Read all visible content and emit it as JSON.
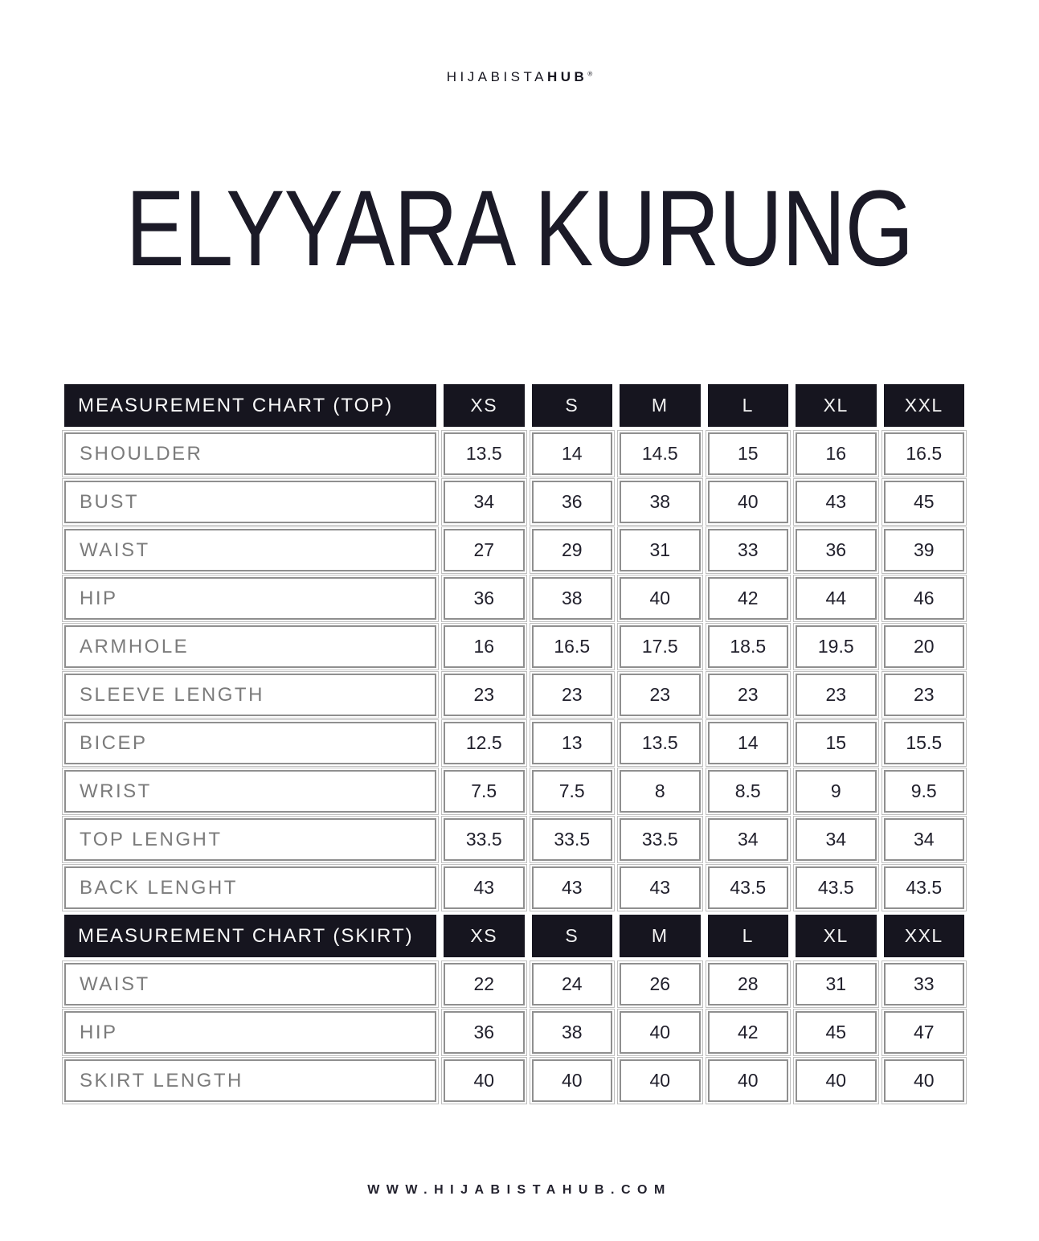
{
  "brand": {
    "logo_regular": "HIJABISTA",
    "logo_bold": "HUB",
    "registered": "®"
  },
  "title": "ELYYARA KURUNG",
  "sizes": [
    "XS",
    "S",
    "M",
    "L",
    "XL",
    "XXL"
  ],
  "tables": [
    {
      "header": "MEASUREMENT CHART (TOP)",
      "rows": [
        {
          "label": "SHOULDER",
          "values": [
            "13.5",
            "14",
            "14.5",
            "15",
            "16",
            "16.5"
          ]
        },
        {
          "label": "BUST",
          "values": [
            "34",
            "36",
            "38",
            "40",
            "43",
            "45"
          ]
        },
        {
          "label": "WAIST",
          "values": [
            "27",
            "29",
            "31",
            "33",
            "36",
            "39"
          ]
        },
        {
          "label": "HIP",
          "values": [
            "36",
            "38",
            "40",
            "42",
            "44",
            "46"
          ]
        },
        {
          "label": "ARMHOLE",
          "values": [
            "16",
            "16.5",
            "17.5",
            "18.5",
            "19.5",
            "20"
          ]
        },
        {
          "label": "SLEEVE LENGTH",
          "values": [
            "23",
            "23",
            "23",
            "23",
            "23",
            "23"
          ]
        },
        {
          "label": "BICEP",
          "values": [
            "12.5",
            "13",
            "13.5",
            "14",
            "15",
            "15.5"
          ]
        },
        {
          "label": "WRIST",
          "values": [
            "7.5",
            "7.5",
            "8",
            "8.5",
            "9",
            "9.5"
          ]
        },
        {
          "label": "TOP LENGHT",
          "values": [
            "33.5",
            "33.5",
            "33.5",
            "34",
            "34",
            "34"
          ]
        },
        {
          "label": "BACK LENGHT",
          "values": [
            "43",
            "43",
            "43",
            "43.5",
            "43.5",
            "43.5"
          ]
        }
      ]
    },
    {
      "header": "MEASUREMENT CHART (SKIRT)",
      "rows": [
        {
          "label": "WAIST",
          "values": [
            "22",
            "24",
            "26",
            "28",
            "31",
            "33"
          ]
        },
        {
          "label": "HIP",
          "values": [
            "36",
            "38",
            "40",
            "42",
            "45",
            "47"
          ]
        },
        {
          "label": "SKIRT LENGTH",
          "values": [
            "40",
            "40",
            "40",
            "40",
            "40",
            "40"
          ]
        }
      ]
    }
  ],
  "footer": "WWW.HIJABISTAHUB.COM",
  "colors": {
    "header_background": "#16151f",
    "value_text": "#21202c",
    "label_text": "#7b7b7b",
    "cell_border": "#8f8f8f"
  }
}
